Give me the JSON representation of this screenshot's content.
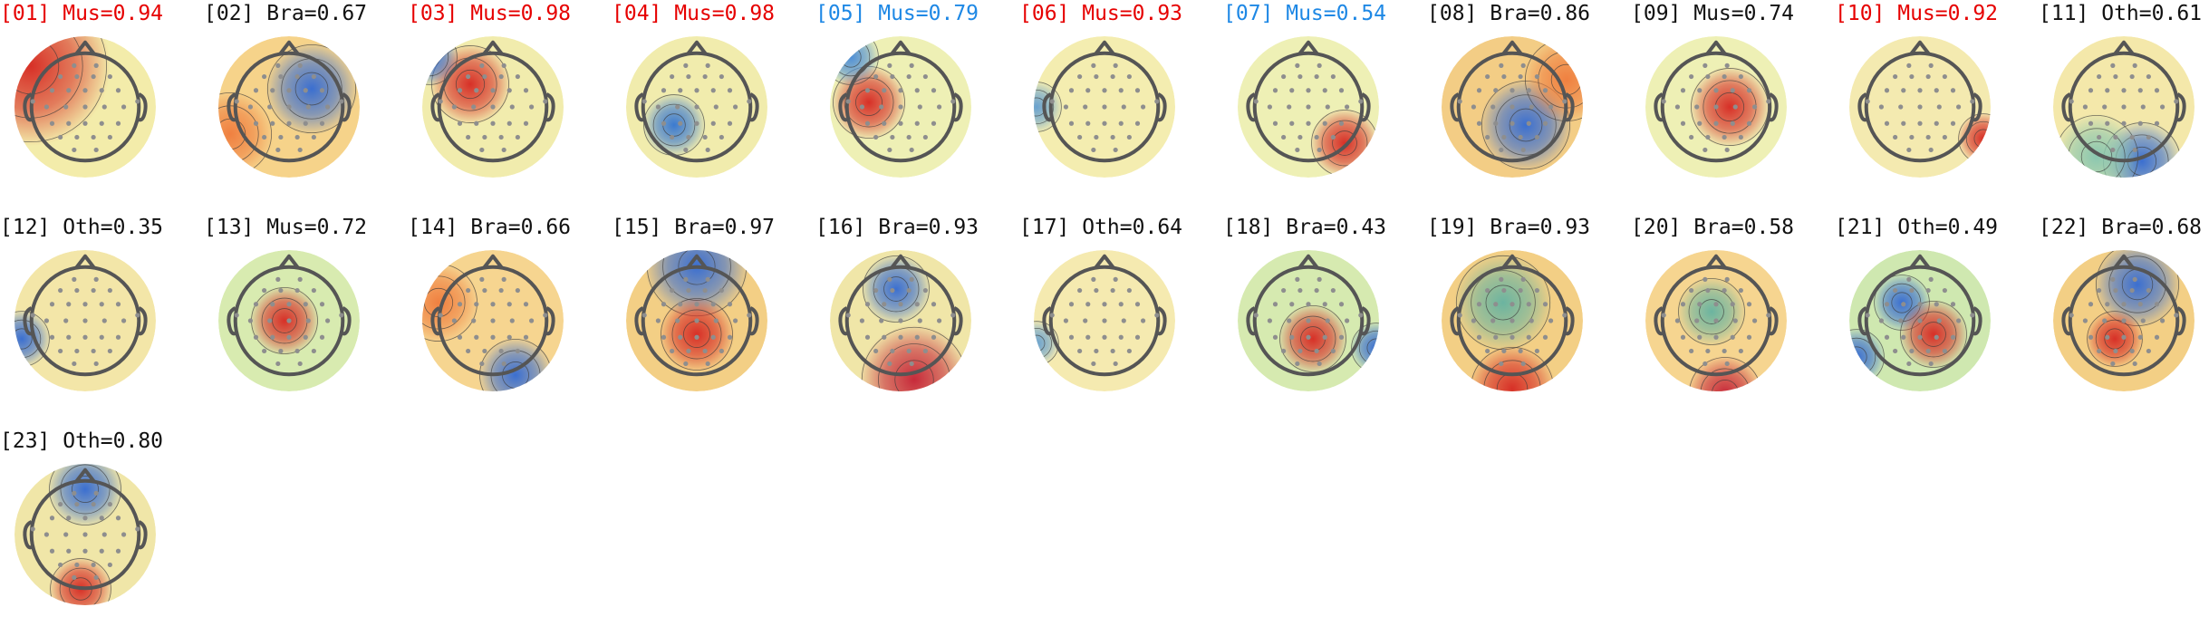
{
  "colors": {
    "rejected_muscle": "#e60000",
    "flagged_blue": "#1e88e5",
    "default_text": "#111111",
    "background": "#ffffff"
  },
  "components": [
    {
      "title": "[01] Mus=0.94",
      "status": "rejected"
    },
    {
      "title": "[02] Bra=0.67",
      "status": "default"
    },
    {
      "title": "[03] Mus=0.98",
      "status": "rejected"
    },
    {
      "title": "[04] Mus=0.98",
      "status": "rejected"
    },
    {
      "title": "[05] Mus=0.79",
      "status": "flagged"
    },
    {
      "title": "[06] Mus=0.93",
      "status": "rejected"
    },
    {
      "title": "[07] Mus=0.54",
      "status": "flagged"
    },
    {
      "title": "[08] Bra=0.86",
      "status": "default"
    },
    {
      "title": "[09] Mus=0.74",
      "status": "default"
    },
    {
      "title": "[10] Mus=0.92",
      "status": "rejected"
    },
    {
      "title": "[11] Oth=0.61",
      "status": "default"
    },
    {
      "title": "[12] Oth=0.35",
      "status": "default"
    },
    {
      "title": "[13] Mus=0.72",
      "status": "default"
    },
    {
      "title": "[14] Bra=0.66",
      "status": "default"
    },
    {
      "title": "[15] Bra=0.97",
      "status": "default"
    },
    {
      "title": "[16] Bra=0.93",
      "status": "default"
    },
    {
      "title": "[17] Oth=0.64",
      "status": "default"
    },
    {
      "title": "[18] Bra=0.43",
      "status": "default"
    },
    {
      "title": "[19] Bra=0.93",
      "status": "default"
    },
    {
      "title": "[20] Bra=0.58",
      "status": "default"
    },
    {
      "title": "[21] Oth=0.49",
      "status": "default"
    },
    {
      "title": "[22] Bra=0.68",
      "status": "default"
    },
    {
      "title": "[23] Oth=0.80",
      "status": "default"
    }
  ]
}
